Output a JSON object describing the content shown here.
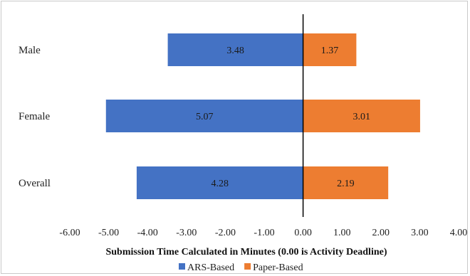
{
  "chart_data": {
    "type": "bar",
    "orientation": "horizontal-diverging",
    "categories": [
      "Male",
      "Female",
      "Overall"
    ],
    "series": [
      {
        "name": "ARS-Based",
        "values": [
          -3.48,
          -5.07,
          -4.28
        ],
        "labels": [
          "3.48",
          "5.07",
          "4.28"
        ],
        "color": "#4472c4"
      },
      {
        "name": "Paper-Based",
        "values": [
          1.37,
          3.01,
          2.19
        ],
        "labels": [
          "1.37",
          "3.01",
          "2.19"
        ],
        "color": "#ed7d31"
      }
    ],
    "xlim": [
      -6,
      4
    ],
    "xticks": [
      -6,
      -5,
      -4,
      -3,
      -2,
      -1,
      0,
      1,
      2,
      3,
      4
    ],
    "xtick_labels": [
      "-6.00",
      "-5.00",
      "-4.00",
      "-3.00",
      "-2.00",
      "-1.00",
      "0.00",
      "1.00",
      "2.00",
      "3.00",
      "4.00"
    ],
    "xlabel": "Submission Time Calculated in Minutes (0.00 is Activity Deadline)",
    "ylabel": "",
    "title": "",
    "grid": false,
    "legend_position": "bottom"
  }
}
